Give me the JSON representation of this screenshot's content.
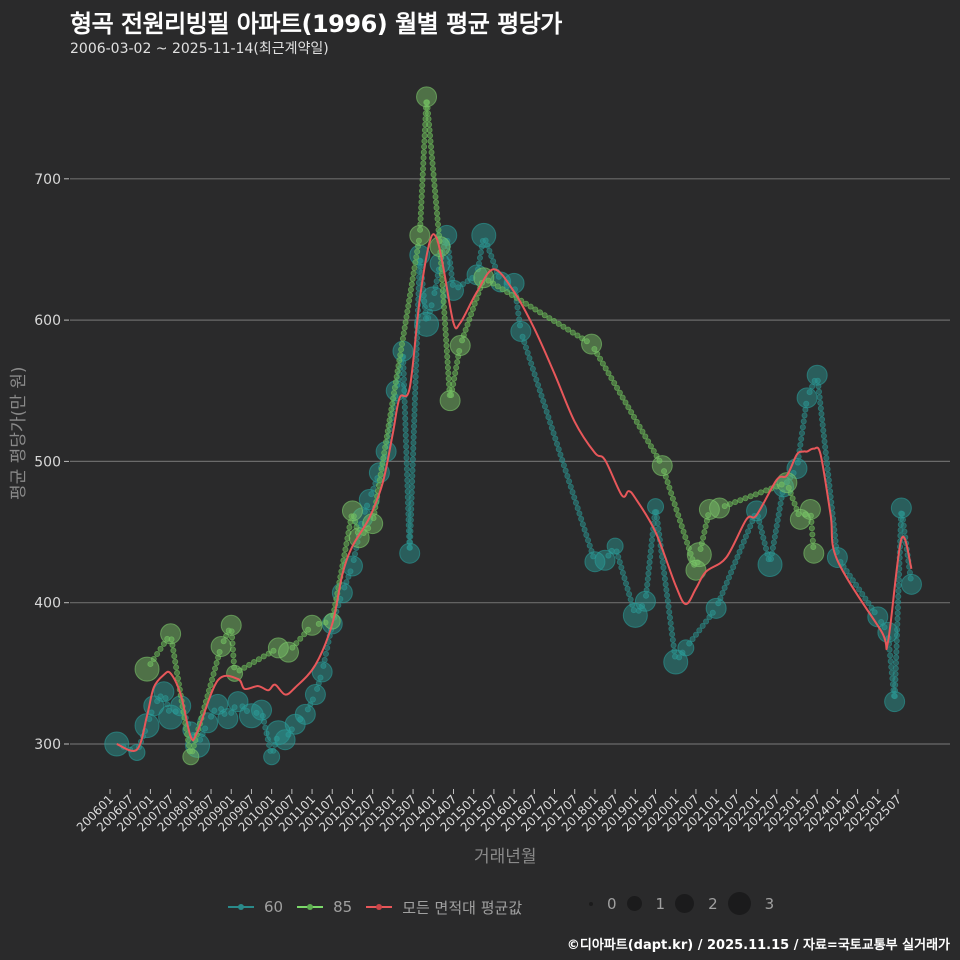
{
  "header": {
    "title": "형곡 전원리빙필 아파트(1996) 월별 평균 평당가",
    "subtitle": "2006-03-02 ~ 2025-11-14(최근계약일)"
  },
  "axes": {
    "ylabel": "평균 평당가(만 원)",
    "xlabel": "거래년월"
  },
  "legend": {
    "series": [
      {
        "label": "60",
        "color": "#2a8a8a"
      },
      {
        "label": "85",
        "color": "#7cd96a"
      },
      {
        "label": "모든 면적대 평균값",
        "color": "#e8575a"
      }
    ],
    "sizes": [
      {
        "label": "0",
        "r": 2
      },
      {
        "label": "1",
        "r": 8
      },
      {
        "label": "2",
        "r": 10
      },
      {
        "label": "3",
        "r": 12
      }
    ]
  },
  "caption": "©디아파트(dapt.kr) / 2025.11.15 / 자료=국토교통부 실거래가",
  "colors": {
    "background": "#2a2a2b",
    "grid": "#6b6b6b",
    "s60": "#2a9d9a",
    "s85": "#7dc86a",
    "avg": "#e8575a"
  },
  "chart_data": {
    "type": "scatter",
    "title": "형곡 전원리빙필 아파트(1996) 월별 평균 평당가",
    "subtitle": "2006-03-02 ~ 2025-11-14(최근계약일)",
    "xlabel": "거래년월",
    "ylabel": "평균 평당가(만 원)",
    "ylim": [
      265,
      790
    ],
    "yticks": [
      300,
      400,
      500,
      600,
      700
    ],
    "grid": true,
    "legend_position": "bottom",
    "categories": [
      "200601",
      "200607",
      "200701",
      "200707",
      "200801",
      "200807",
      "200901",
      "200907",
      "201001",
      "201007",
      "201101",
      "201107",
      "201201",
      "201207",
      "201301",
      "201307",
      "201401",
      "201407",
      "201501",
      "201507",
      "201601",
      "201607",
      "201701",
      "201707",
      "201801",
      "201807",
      "201901",
      "201907",
      "202001",
      "202007",
      "202101",
      "202107",
      "202201",
      "202207",
      "202301",
      "202307",
      "202401",
      "202407",
      "202501",
      "202507"
    ],
    "series": [
      {
        "name": "60",
        "points": [
          [
            "2006-03",
            300,
            3
          ],
          [
            "2006-09",
            294,
            1
          ],
          [
            "2006-12",
            313,
            3
          ],
          [
            "2007-02",
            327,
            2
          ],
          [
            "2007-05",
            337,
            2
          ],
          [
            "2007-07",
            319,
            3
          ],
          [
            "2007-10",
            327,
            2
          ],
          [
            "2008-01",
            310,
            1
          ],
          [
            "2008-03",
            299,
            3
          ],
          [
            "2008-06",
            315,
            2
          ],
          [
            "2008-09",
            328,
            2
          ],
          [
            "2008-12",
            318,
            2
          ],
          [
            "2009-03",
            330,
            2
          ],
          [
            "2009-07",
            320,
            3
          ],
          [
            "2009-10",
            324,
            2
          ],
          [
            "2010-01",
            291,
            1
          ],
          [
            "2010-03",
            308,
            3
          ],
          [
            "2010-05",
            303,
            2
          ],
          [
            "2010-08",
            314,
            2
          ],
          [
            "2010-11",
            321,
            2
          ],
          [
            "2011-02",
            335,
            2
          ],
          [
            "2011-04",
            351,
            2
          ],
          [
            "2011-07",
            385,
            2
          ],
          [
            "2011-10",
            407,
            2
          ],
          [
            "2012-01",
            426,
            2
          ],
          [
            "2012-04",
            460,
            2
          ],
          [
            "2012-06",
            473,
            2
          ],
          [
            "2012-09",
            492,
            2
          ],
          [
            "2012-11",
            507,
            2
          ],
          [
            "2013-02",
            550,
            2
          ],
          [
            "2013-04",
            578,
            2
          ],
          [
            "2013-06",
            435,
            2
          ],
          [
            "2013-09",
            646,
            2
          ],
          [
            "2013-11",
            597,
            3
          ],
          [
            "2014-01",
            615,
            3
          ],
          [
            "2014-03",
            640,
            2
          ],
          [
            "2014-05",
            660,
            2
          ],
          [
            "2014-07",
            621,
            2
          ],
          [
            "2015-02",
            632,
            2
          ],
          [
            "2015-04",
            660,
            3
          ],
          [
            "2015-09",
            627,
            2
          ],
          [
            "2016-01",
            626,
            2
          ],
          [
            "2016-03",
            592,
            2
          ],
          [
            "2018-01",
            429,
            2
          ],
          [
            "2018-04",
            430,
            2
          ],
          [
            "2018-07",
            440,
            1
          ],
          [
            "2019-01",
            391,
            3
          ],
          [
            "2019-04",
            401,
            2
          ],
          [
            "2019-07",
            468,
            1
          ],
          [
            "2020-01",
            358,
            3
          ],
          [
            "2020-04",
            368,
            1
          ],
          [
            "2021-01",
            396,
            2
          ],
          [
            "2022-01",
            465,
            2
          ],
          [
            "2022-05",
            427,
            3
          ],
          [
            "2022-09",
            482,
            2
          ],
          [
            "2023-01",
            495,
            2
          ],
          [
            "2023-04",
            545,
            2
          ],
          [
            "2023-07",
            561,
            2
          ],
          [
            "2024-01",
            432,
            2
          ],
          [
            "2025-01",
            390,
            2
          ],
          [
            "2025-04",
            379,
            2
          ],
          [
            "2025-06",
            330,
            2
          ],
          [
            "2025-08",
            467,
            2
          ],
          [
            "2025-11",
            413,
            2
          ]
        ]
      },
      {
        "name": "85",
        "points": [
          [
            "2006-12",
            353,
            3
          ],
          [
            "2007-07",
            378,
            2
          ],
          [
            "2008-01",
            291,
            1
          ],
          [
            "2008-10",
            369,
            2
          ],
          [
            "2009-01",
            384,
            2
          ],
          [
            "2009-02",
            350,
            1
          ],
          [
            "2010-03",
            368,
            2
          ],
          [
            "2010-06",
            365,
            2
          ],
          [
            "2011-01",
            384,
            2
          ],
          [
            "2011-07",
            387,
            1
          ],
          [
            "2012-01",
            465,
            2
          ],
          [
            "2012-03",
            446,
            2
          ],
          [
            "2012-07",
            456,
            2
          ],
          [
            "2013-09",
            660,
            2
          ],
          [
            "2013-11",
            758,
            2
          ],
          [
            "2014-03",
            652,
            2
          ],
          [
            "2014-06",
            543,
            2
          ],
          [
            "2014-09",
            582,
            2
          ],
          [
            "2015-04",
            630,
            2
          ],
          [
            "2017-12",
            583,
            2
          ],
          [
            "2019-09",
            497,
            2
          ],
          [
            "2020-07",
            423,
            2
          ],
          [
            "2020-08",
            434,
            3
          ],
          [
            "2020-11",
            466,
            2
          ],
          [
            "2021-02",
            467,
            2
          ],
          [
            "2022-10",
            485,
            2
          ],
          [
            "2023-02",
            459,
            2
          ],
          [
            "2023-05",
            466,
            2
          ],
          [
            "2023-06",
            435,
            2
          ]
        ]
      },
      {
        "name": "모든 면적대 평균값",
        "line": [
          [
            "2006-03",
            300
          ],
          [
            "2006-09",
            296
          ],
          [
            "2006-12",
            320
          ],
          [
            "2007-02",
            340
          ],
          [
            "2007-05",
            349
          ],
          [
            "2007-07",
            350
          ],
          [
            "2007-10",
            335
          ],
          [
            "2008-01",
            305
          ],
          [
            "2008-03",
            309
          ],
          [
            "2008-09",
            345
          ],
          [
            "2009-03",
            346
          ],
          [
            "2009-05",
            339
          ],
          [
            "2009-09",
            341
          ],
          [
            "2009-12",
            338
          ],
          [
            "2010-02",
            342
          ],
          [
            "2010-05",
            335
          ],
          [
            "2010-08",
            340
          ],
          [
            "2011-02",
            356
          ],
          [
            "2011-07",
            385
          ],
          [
            "2011-10",
            420
          ],
          [
            "2012-01",
            440
          ],
          [
            "2012-06",
            460
          ],
          [
            "2012-10",
            485
          ],
          [
            "2013-01",
            520
          ],
          [
            "2013-03",
            545
          ],
          [
            "2013-06",
            552
          ],
          [
            "2013-09",
            615
          ],
          [
            "2013-12",
            656
          ],
          [
            "2014-02",
            658
          ],
          [
            "2014-04",
            637
          ],
          [
            "2014-07",
            598
          ],
          [
            "2014-09",
            598
          ],
          [
            "2015-02",
            620
          ],
          [
            "2015-07",
            636
          ],
          [
            "2016-01",
            620
          ],
          [
            "2016-07",
            594
          ],
          [
            "2017-01",
            562
          ],
          [
            "2017-07",
            528
          ],
          [
            "2018-01",
            506
          ],
          [
            "2018-04",
            501
          ],
          [
            "2018-09",
            476
          ],
          [
            "2018-11",
            479
          ],
          [
            "2019-01",
            474
          ],
          [
            "2019-07",
            450
          ],
          [
            "2020-01",
            412
          ],
          [
            "2020-04",
            399
          ],
          [
            "2020-07",
            410
          ],
          [
            "2020-10",
            422
          ],
          [
            "2021-04",
            432
          ],
          [
            "2021-10",
            459
          ],
          [
            "2022-01",
            462
          ],
          [
            "2022-07",
            487
          ],
          [
            "2022-10",
            490
          ],
          [
            "2023-01",
            505
          ],
          [
            "2023-03",
            507
          ],
          [
            "2023-04",
            507
          ],
          [
            "2023-06",
            509
          ],
          [
            "2023-08",
            505
          ],
          [
            "2023-11",
            462
          ],
          [
            "2024-01",
            430
          ],
          [
            "2025-02",
            380
          ],
          [
            "2025-04",
            372
          ],
          [
            "2025-08",
            445
          ],
          [
            "2025-11",
            424
          ]
        ]
      }
    ],
    "size_legend": {
      "0": 2,
      "1": 8,
      "2": 10,
      "3": 12
    }
  }
}
